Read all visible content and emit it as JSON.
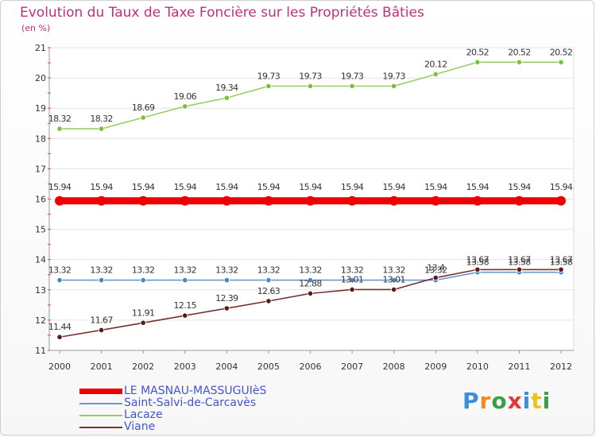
{
  "header": {
    "title": "Evolution du Taux de Taxe Foncière sur les Propriétés Bâties",
    "unit": "(en %)"
  },
  "chart_data": {
    "type": "line",
    "title": "Evolution du Taux de Taxe Foncière sur les Propriétés Bâties",
    "ylabel": "(en %)",
    "xlabel": "",
    "categories": [
      "2000",
      "2001",
      "2002",
      "2003",
      "2004",
      "2005",
      "2006",
      "2007",
      "2008",
      "2009",
      "2010",
      "2011",
      "2012"
    ],
    "ylim": [
      11,
      21
    ],
    "yticks": [
      11,
      12,
      13,
      14,
      15,
      16,
      17,
      18,
      19,
      20,
      21
    ],
    "grid": "horizontal",
    "series": [
      {
        "name": "Lacaze",
        "color": "#99cc66",
        "markerColor": "#77c23a",
        "values": [
          18.32,
          18.32,
          18.69,
          19.06,
          19.34,
          19.73,
          19.73,
          19.73,
          19.73,
          20.12,
          20.52,
          20.52,
          20.52
        ],
        "labels": [
          "18.32",
          "18.32",
          "18.69",
          "19.06",
          "19.34",
          "19.73",
          "19.73",
          "19.73",
          "19.73",
          "20.12",
          "20.52",
          "20.52",
          "20.52"
        ],
        "labelPos": "above"
      },
      {
        "name": "LE MASNAU-MASSUGUIèS",
        "color": "#ee0000",
        "markerColor": "#ee0000",
        "values": [
          15.94,
          15.94,
          15.94,
          15.94,
          15.94,
          15.94,
          15.94,
          15.94,
          15.94,
          15.94,
          15.94,
          15.94,
          15.94
        ],
        "labels": [
          "15.94",
          "15.94",
          "15.94",
          "15.94",
          "15.94",
          "15.94",
          "15.94",
          "15.94",
          "15.94",
          "15.94",
          "15.94",
          "15.94",
          "15.94"
        ],
        "labelPos": "above",
        "thick": true
      },
      {
        "name": "Saint-Salvi-de-Carcavès",
        "color": "#6699cc",
        "markerColor": "#4a86c6",
        "values": [
          13.32,
          13.32,
          13.32,
          13.32,
          13.32,
          13.32,
          13.32,
          13.32,
          13.32,
          13.32,
          13.58,
          13.58,
          13.58
        ],
        "labels": [
          "13.32",
          "13.32",
          "13.32",
          "13.32",
          "13.32",
          "13.32",
          "13.32",
          "13.32",
          "13.32",
          "13.32",
          "13.58",
          "13.58",
          "13.58"
        ],
        "labelPos": "above"
      },
      {
        "name": "Viane",
        "color": "#7a3030",
        "markerColor": "#5a1a1a",
        "values": [
          11.44,
          11.67,
          11.91,
          12.15,
          12.39,
          12.63,
          12.88,
          13.01,
          13.01,
          13.4,
          13.67,
          13.67,
          13.67
        ],
        "labels": [
          "11.44",
          "11.67",
          "11.91",
          "12.15",
          "12.39",
          "12.63",
          "12.88",
          "13.01",
          "13.01",
          "13.4",
          "13.67",
          "13.67",
          "13.67"
        ],
        "labelPos": "above"
      }
    ],
    "legend": {
      "position": "bottom-left",
      "order": [
        "LE MASNAU-MASSUGUIèS",
        "Saint-Salvi-de-Carcavès",
        "Lacaze",
        "Viane"
      ]
    }
  },
  "logo": {
    "letters": [
      "P",
      "r",
      "o",
      "x",
      "i",
      "t",
      "i"
    ]
  }
}
